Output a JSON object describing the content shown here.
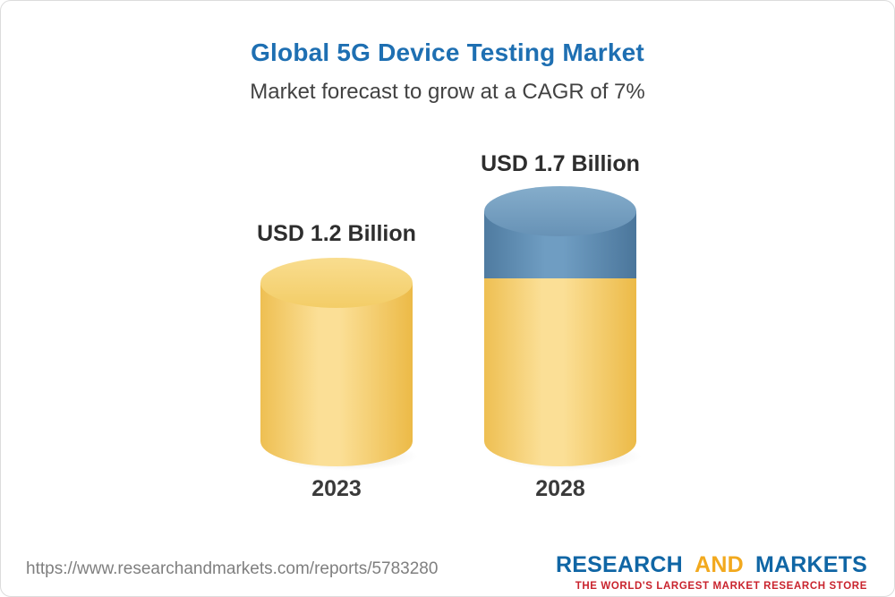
{
  "header": {
    "title": "Global 5G Device Testing Market",
    "subtitle": "Market forecast to grow at a CAGR of 7%"
  },
  "chart_data": {
    "type": "bar",
    "title": "Global 5G Device Testing Market",
    "subtitle": "Market forecast to grow at a CAGR of 7%",
    "categories": [
      "2023",
      "2028"
    ],
    "values": [
      1.2,
      1.7
    ],
    "unit": "USD Billion",
    "cagr_pct": 7,
    "data_labels": [
      "USD 1.2 Billion",
      "USD 1.7 Billion"
    ],
    "legend_position": "none",
    "grid": false,
    "colors": {
      "base_segment": "#f6cf67",
      "growth_segment": "#5d8fb5",
      "title": "#1e6fb2"
    }
  },
  "footer": {
    "url": "https://www.researchandmarkets.com/reports/5783280",
    "logo": {
      "research": "RESEARCH",
      "and": "AND",
      "markets": "MARKETS",
      "tagline": "THE WORLD'S LARGEST MARKET RESEARCH STORE"
    }
  }
}
